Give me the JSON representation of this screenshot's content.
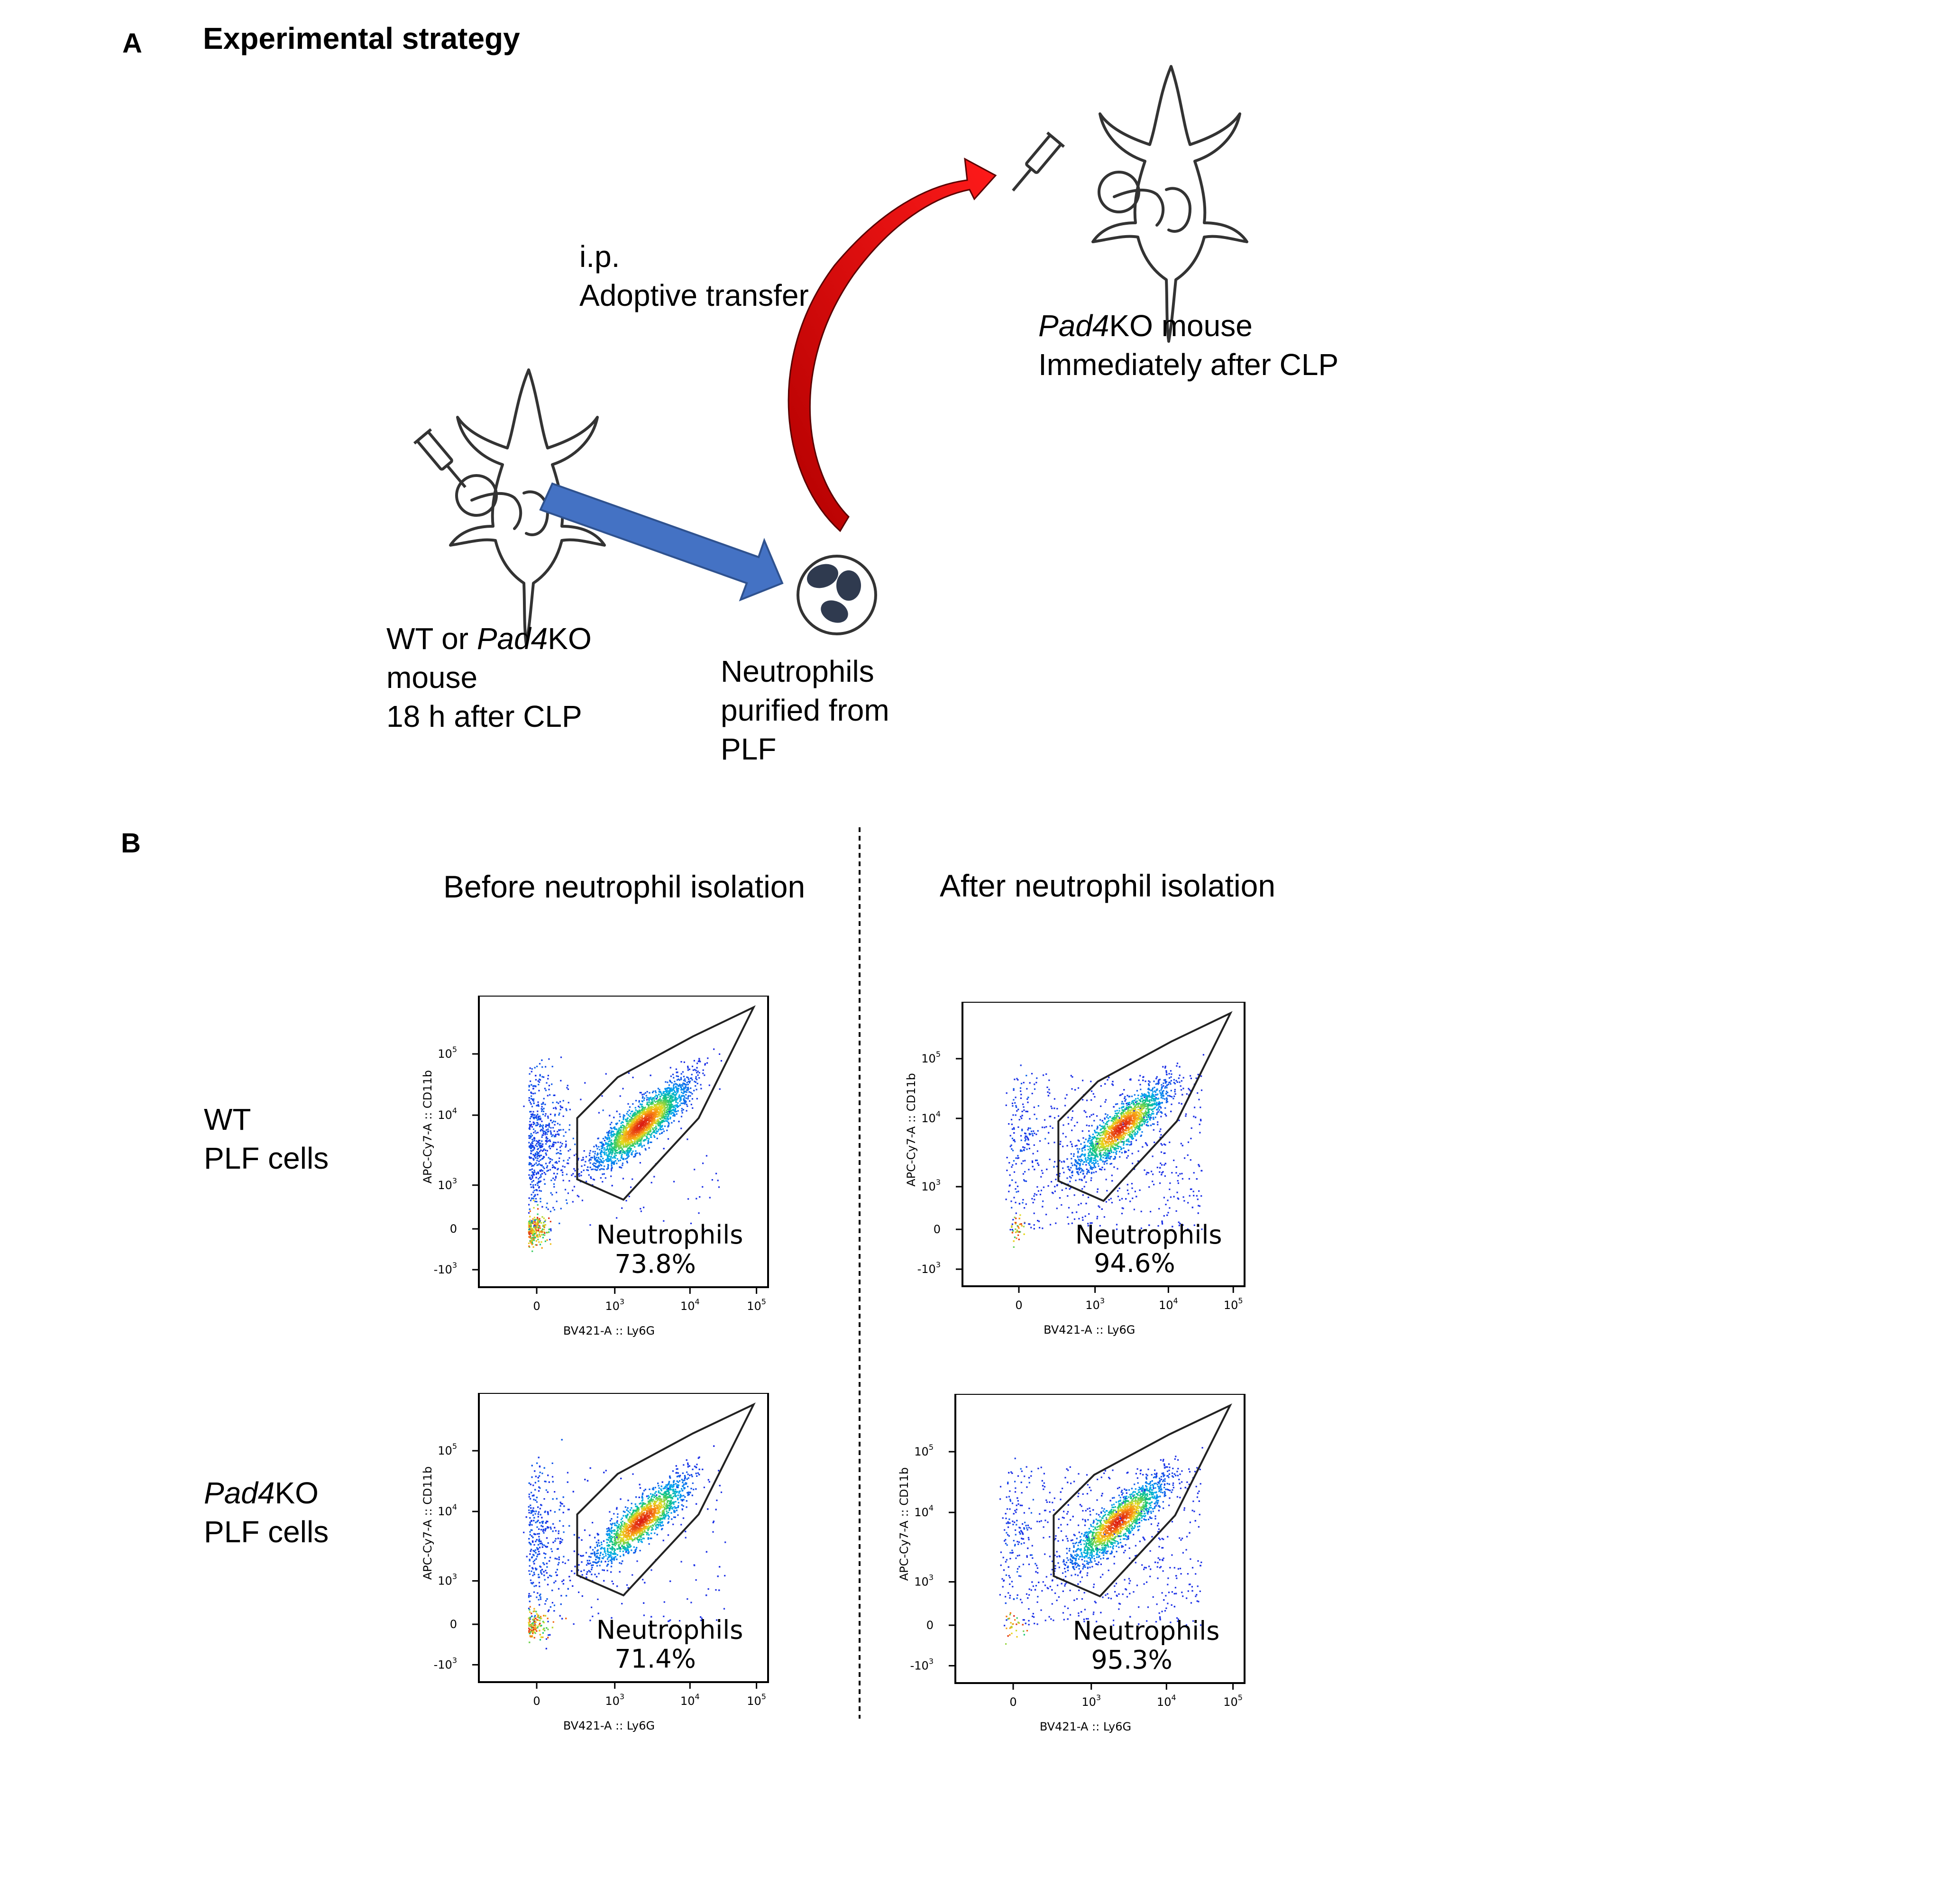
{
  "panel_a": {
    "letter": "A",
    "title": "Experimental strategy",
    "transfer_line1": "i.p.",
    "transfer_line2": "Adoptive transfer",
    "recipient_name": "Pad4",
    "recipient_suffix": "KO mouse",
    "recipient_time": "Immediately after CLP",
    "donor_prefix": "WT or ",
    "donor_name": "Pad4",
    "donor_suffix": "KO",
    "donor_line2": "mouse",
    "donor_line3": "18 h after CLP",
    "neut_line1": "Neutrophils",
    "neut_line2": "purified from",
    "neut_line3": "PLF",
    "colors": {
      "transfer_arrow": "#dd0000",
      "purify_arrow": "#4472c4",
      "neutrophil": "#2f3a4f"
    },
    "icons": [
      "mouse-icon",
      "syringe-icon",
      "neutrophil-icon"
    ]
  },
  "panel_b": {
    "letter": "B",
    "col_before": "Before neutrophil isolation",
    "col_after": "After neutrophil isolation",
    "row_wt_line1": "WT",
    "row_wt_line2": "PLF cells",
    "row_ko_name": "Pad4",
    "row_ko_suffix": "KO",
    "row_ko_line2": "PLF cells",
    "plot_x_label": "BV421-A :: Ly6G",
    "plot_y_label": "APC-Cy7-A :: CD11b",
    "x_ticks": [
      "0",
      "10",
      "10",
      "10"
    ],
    "x_tick_exps": [
      "",
      "3",
      "4",
      "5"
    ],
    "y_ticks": [
      "10",
      "10",
      "10",
      "0",
      "-10"
    ],
    "y_tick_exps": [
      "5",
      "4",
      "3",
      "",
      "3"
    ]
  },
  "chart_data": [
    {
      "type": "scatter",
      "plot": "WT PLF cells — Before neutrophil isolation",
      "gate": "Neutrophils",
      "value": 73.8,
      "value_label": "73.8%",
      "xlabel": "BV421-A :: Ly6G",
      "ylabel": "APC-Cy7-A :: CD11b",
      "scale": "biexponential"
    },
    {
      "type": "scatter",
      "plot": "WT PLF cells — After neutrophil isolation",
      "gate": "Neutrophils",
      "value": 94.6,
      "value_label": "94.6%",
      "xlabel": "BV421-A :: Ly6G",
      "ylabel": "APC-Cy7-A :: CD11b",
      "scale": "biexponential"
    },
    {
      "type": "scatter",
      "plot": "Pad4KO PLF cells — Before neutrophil isolation",
      "gate": "Neutrophils",
      "value": 71.4,
      "value_label": "71.4%",
      "xlabel": "BV421-A :: Ly6G",
      "ylabel": "APC-Cy7-A :: CD11b",
      "scale": "biexponential"
    },
    {
      "type": "scatter",
      "plot": "Pad4KO PLF cells — After neutrophil isolation",
      "gate": "Neutrophils",
      "value": 95.3,
      "value_label": "95.3%",
      "xlabel": "BV421-A :: Ly6G",
      "ylabel": "APC-Cy7-A :: CD11b",
      "scale": "biexponential"
    }
  ]
}
